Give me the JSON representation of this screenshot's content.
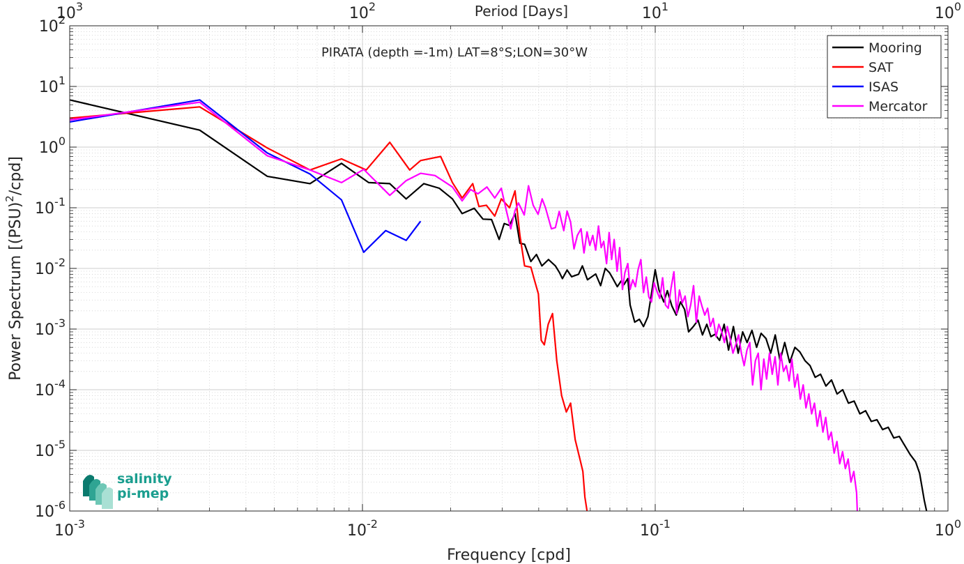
{
  "chart_data": {
    "type": "line",
    "title": "PIRATA (depth =-1m) LAT=8°S;LON=30°W",
    "xlabel": "Frequency [cpd]",
    "ylabel": "Power Spectrum [(PSU)²/cpd]",
    "x2label": "Period [Days]",
    "xscale": "log",
    "yscale": "log",
    "xlim": [
      0.001,
      1
    ],
    "ylim": [
      1e-06,
      100
    ],
    "grid": true,
    "legend_position": "top-right",
    "xticks": [
      0.001,
      0.01,
      0.1,
      1
    ],
    "xtick_labels": [
      {
        "base": "10",
        "exp": "-3"
      },
      {
        "base": "10",
        "exp": "-2"
      },
      {
        "base": "10",
        "exp": "-1"
      },
      {
        "base": "10",
        "exp": "0"
      }
    ],
    "yticks": [
      1e-06,
      1e-05,
      0.0001,
      0.001,
      0.01,
      0.1,
      1,
      10,
      100
    ],
    "ytick_labels": [
      {
        "base": "10",
        "exp": "-6"
      },
      {
        "base": "10",
        "exp": "-5"
      },
      {
        "base": "10",
        "exp": "-4"
      },
      {
        "base": "10",
        "exp": "-3"
      },
      {
        "base": "10",
        "exp": "-2"
      },
      {
        "base": "10",
        "exp": "-1"
      },
      {
        "base": "10",
        "exp": "0"
      },
      {
        "base": "10",
        "exp": "1"
      },
      {
        "base": "10",
        "exp": "2"
      }
    ],
    "x2ticks": [
      0.001,
      0.01,
      0.1,
      1
    ],
    "x2tick_labels": [
      {
        "base": "10",
        "exp": "3"
      },
      {
        "base": "10",
        "exp": "2"
      },
      {
        "base": "10",
        "exp": "1"
      },
      {
        "base": "10",
        "exp": "0"
      }
    ],
    "series": [
      {
        "name": "Mooring",
        "color": "#000000",
        "x": [
          0.001,
          0.00278,
          0.00473,
          0.00662,
          0.00848,
          0.0105,
          0.0124,
          0.0141,
          0.0162,
          0.0183,
          0.0203,
          0.0219,
          0.0241,
          0.0258,
          0.0276,
          0.0293,
          0.0305,
          0.0318,
          0.0332,
          0.0345,
          0.0358,
          0.0376,
          0.0393,
          0.041,
          0.0432,
          0.0456,
          0.0471,
          0.0482,
          0.05,
          0.0518,
          0.0547,
          0.0564,
          0.0587,
          0.061,
          0.0626,
          0.0651,
          0.0675,
          0.0698,
          0.0717,
          0.0742,
          0.0765,
          0.0782,
          0.0806,
          0.0821,
          0.0851,
          0.0883,
          0.0912,
          0.0944,
          0.0971,
          0.1,
          0.103,
          0.107,
          0.11,
          0.114,
          0.118,
          0.122,
          0.126,
          0.13,
          0.135,
          0.14,
          0.145,
          0.15,
          0.155,
          0.16,
          0.166,
          0.172,
          0.178,
          0.185,
          0.192,
          0.199,
          0.206,
          0.214,
          0.222,
          0.23,
          0.239,
          0.248,
          0.257,
          0.267,
          0.277,
          0.288,
          0.3,
          0.312,
          0.325,
          0.338,
          0.352,
          0.367,
          0.383,
          0.4,
          0.418,
          0.437,
          0.457,
          0.478,
          0.5,
          0.523,
          0.547,
          0.572,
          0.598,
          0.625,
          0.653,
          0.682,
          0.712,
          0.743,
          0.775,
          0.8,
          0.815,
          0.83,
          0.845
        ],
        "y": [
          6.0,
          1.9,
          0.33,
          0.25,
          0.54,
          0.26,
          0.25,
          0.14,
          0.25,
          0.21,
          0.14,
          0.08,
          0.098,
          0.065,
          0.064,
          0.03,
          0.055,
          0.051,
          0.08,
          0.026,
          0.025,
          0.013,
          0.017,
          0.011,
          0.014,
          0.011,
          0.0085,
          0.0068,
          0.0094,
          0.0073,
          0.008,
          0.011,
          0.0065,
          0.0074,
          0.0081,
          0.0052,
          0.01,
          0.0085,
          0.0068,
          0.005,
          0.0062,
          0.0054,
          0.0068,
          0.0025,
          0.0013,
          0.00145,
          0.0011,
          0.0016,
          0.0038,
          0.0095,
          0.0044,
          0.0028,
          0.0043,
          0.0024,
          0.0017,
          0.0028,
          0.0021,
          0.0009,
          0.0011,
          0.0014,
          0.0008,
          0.0012,
          0.00075,
          0.00082,
          0.00065,
          0.0012,
          0.00045,
          0.0011,
          0.0004,
          0.0009,
          0.0006,
          0.00095,
          0.0005,
          0.00085,
          0.0007,
          0.0004,
          0.0008,
          0.0003,
          0.0006,
          0.00028,
          0.0005,
          0.00042,
          0.0003,
          0.00025,
          0.00016,
          0.00018,
          0.000115,
          0.000145,
          8.5e-05,
          0.0001,
          6e-05,
          6.5e-05,
          4e-05,
          4.5e-05,
          3e-05,
          3.2e-05,
          2.2e-05,
          2.4e-05,
          1.6e-05,
          1.7e-05,
          1.2e-05,
          8.5e-06,
          6.5e-06,
          4.2e-06,
          2.5e-06,
          1.5e-06,
          9e-07
        ]
      },
      {
        "name": "SAT",
        "color": "#ff0000",
        "x": [
          0.001,
          0.00278,
          0.00473,
          0.00662,
          0.00848,
          0.0103,
          0.0124,
          0.0145,
          0.0158,
          0.0174,
          0.0185,
          0.0203,
          0.0219,
          0.0238,
          0.025,
          0.0265,
          0.0283,
          0.0298,
          0.0318,
          0.0332,
          0.0345,
          0.0358,
          0.0376,
          0.0387,
          0.0399,
          0.0408,
          0.0418,
          0.0431,
          0.0446,
          0.0461,
          0.0479,
          0.0497,
          0.0514,
          0.0533,
          0.0556,
          0.0566,
          0.0575,
          0.0585
        ],
        "y": [
          3.0,
          4.6,
          0.97,
          0.42,
          0.64,
          0.42,
          1.2,
          0.42,
          0.6,
          0.66,
          0.7,
          0.26,
          0.145,
          0.25,
          0.105,
          0.11,
          0.073,
          0.14,
          0.1,
          0.19,
          0.035,
          0.011,
          0.0105,
          0.0064,
          0.0038,
          0.00065,
          0.00055,
          0.0012,
          0.0018,
          0.0003,
          8e-05,
          4.3e-05,
          6e-05,
          1.5e-05,
          6.5e-06,
          4.5e-06,
          1.7e-06,
          9e-07
        ]
      },
      {
        "name": "ISAS",
        "color": "#0000ff",
        "x": [
          0.001,
          0.00278,
          0.00473,
          0.00662,
          0.00848,
          0.0101,
          0.012,
          0.0141,
          0.0158
        ],
        "y": [
          2.6,
          6.0,
          0.8,
          0.36,
          0.135,
          0.0185,
          0.042,
          0.029,
          0.06
        ]
      },
      {
        "name": "Mercator",
        "color": "#ff00ff",
        "x": [
          0.001,
          0.00278,
          0.00473,
          0.00662,
          0.00848,
          0.0101,
          0.0124,
          0.0141,
          0.0158,
          0.0177,
          0.0203,
          0.0219,
          0.0234,
          0.0248,
          0.0266,
          0.0283,
          0.0298,
          0.031,
          0.0321,
          0.0332,
          0.0341,
          0.0357,
          0.0369,
          0.0383,
          0.0398,
          0.0411,
          0.0422,
          0.0442,
          0.0456,
          0.047,
          0.0487,
          0.05,
          0.0514,
          0.0528,
          0.0542,
          0.0558,
          0.0571,
          0.0585,
          0.0598,
          0.0612,
          0.0626,
          0.064,
          0.0654,
          0.0667,
          0.0682,
          0.0696,
          0.071,
          0.0724,
          0.0741,
          0.0756,
          0.0773,
          0.0788,
          0.0806,
          0.0821,
          0.0838,
          0.0856,
          0.0874,
          0.0893,
          0.0912,
          0.0932,
          0.0951,
          0.0971,
          0.0991,
          0.1014,
          0.1037,
          0.106,
          0.1084,
          0.1108,
          0.1133,
          0.1158,
          0.1184,
          0.121,
          0.1237,
          0.1265,
          0.1293,
          0.1322,
          0.1352,
          0.1382,
          0.1413,
          0.1444,
          0.1477,
          0.151,
          0.1544,
          0.1578,
          0.1614,
          0.165,
          0.1687,
          0.1724,
          0.1763,
          0.1802,
          0.1843,
          0.1884,
          0.1926,
          0.1969,
          0.2013,
          0.2058,
          0.2104,
          0.2151,
          0.2199,
          0.2248,
          0.2298,
          0.235,
          0.2402,
          0.2456,
          0.2511,
          0.2567,
          0.2624,
          0.2683,
          0.2743,
          0.2804,
          0.2867,
          0.2931,
          0.2997,
          0.3064,
          0.3132,
          0.3202,
          0.3274,
          0.3347,
          0.3422,
          0.3499,
          0.3577,
          0.3657,
          0.3739,
          0.3822,
          0.3908,
          0.3995,
          0.4084,
          0.4176,
          0.4269,
          0.4364,
          0.4462,
          0.4562,
          0.4663,
          0.4768,
          0.4874,
          0.49
        ],
        "y": [
          2.8,
          5.5,
          0.72,
          0.42,
          0.26,
          0.43,
          0.16,
          0.28,
          0.37,
          0.34,
          0.22,
          0.13,
          0.2,
          0.17,
          0.22,
          0.145,
          0.21,
          0.09,
          0.045,
          0.09,
          0.12,
          0.076,
          0.23,
          0.11,
          0.078,
          0.14,
          0.1,
          0.045,
          0.047,
          0.087,
          0.042,
          0.088,
          0.058,
          0.021,
          0.035,
          0.045,
          0.018,
          0.04,
          0.024,
          0.035,
          0.02,
          0.05,
          0.022,
          0.028,
          0.012,
          0.039,
          0.014,
          0.03,
          0.009,
          0.022,
          0.0045,
          0.0085,
          0.012,
          0.0045,
          0.0065,
          0.005,
          0.0095,
          0.014,
          0.004,
          0.0072,
          0.0034,
          0.0028,
          0.0058,
          0.0042,
          0.0032,
          0.007,
          0.0025,
          0.0022,
          0.0048,
          0.0088,
          0.0018,
          0.0044,
          0.0027,
          0.0035,
          0.0016,
          0.0025,
          0.0052,
          0.0013,
          0.0035,
          0.0024,
          0.0017,
          0.0022,
          0.0011,
          0.0015,
          0.00075,
          0.0012,
          0.0009,
          0.0006,
          0.0011,
          0.0007,
          0.0004,
          0.00055,
          0.0008,
          0.0004,
          0.00025,
          0.00045,
          0.0006,
          0.00012,
          0.0003,
          0.0004,
          0.0001,
          0.00032,
          0.00015,
          0.0004,
          0.00018,
          0.00035,
          0.00012,
          0.0004,
          0.0002,
          0.00025,
          0.00014,
          0.00032,
          0.00011,
          0.00018,
          7e-05,
          0.00012,
          5e-05,
          8.5e-05,
          4e-05,
          6e-05,
          2.5e-05,
          4.5e-05,
          2e-05,
          3.5e-05,
          1.5e-05,
          2e-05,
          9e-06,
          1.4e-05,
          6e-06,
          9.5e-06,
          5e-06,
          7.2e-06,
          3e-06,
          4.5e-06,
          2e-06,
          9e-07
        ]
      }
    ]
  },
  "logo": {
    "line1": "salinity",
    "line2": "pi-mep",
    "color": "#1a9e8f"
  }
}
